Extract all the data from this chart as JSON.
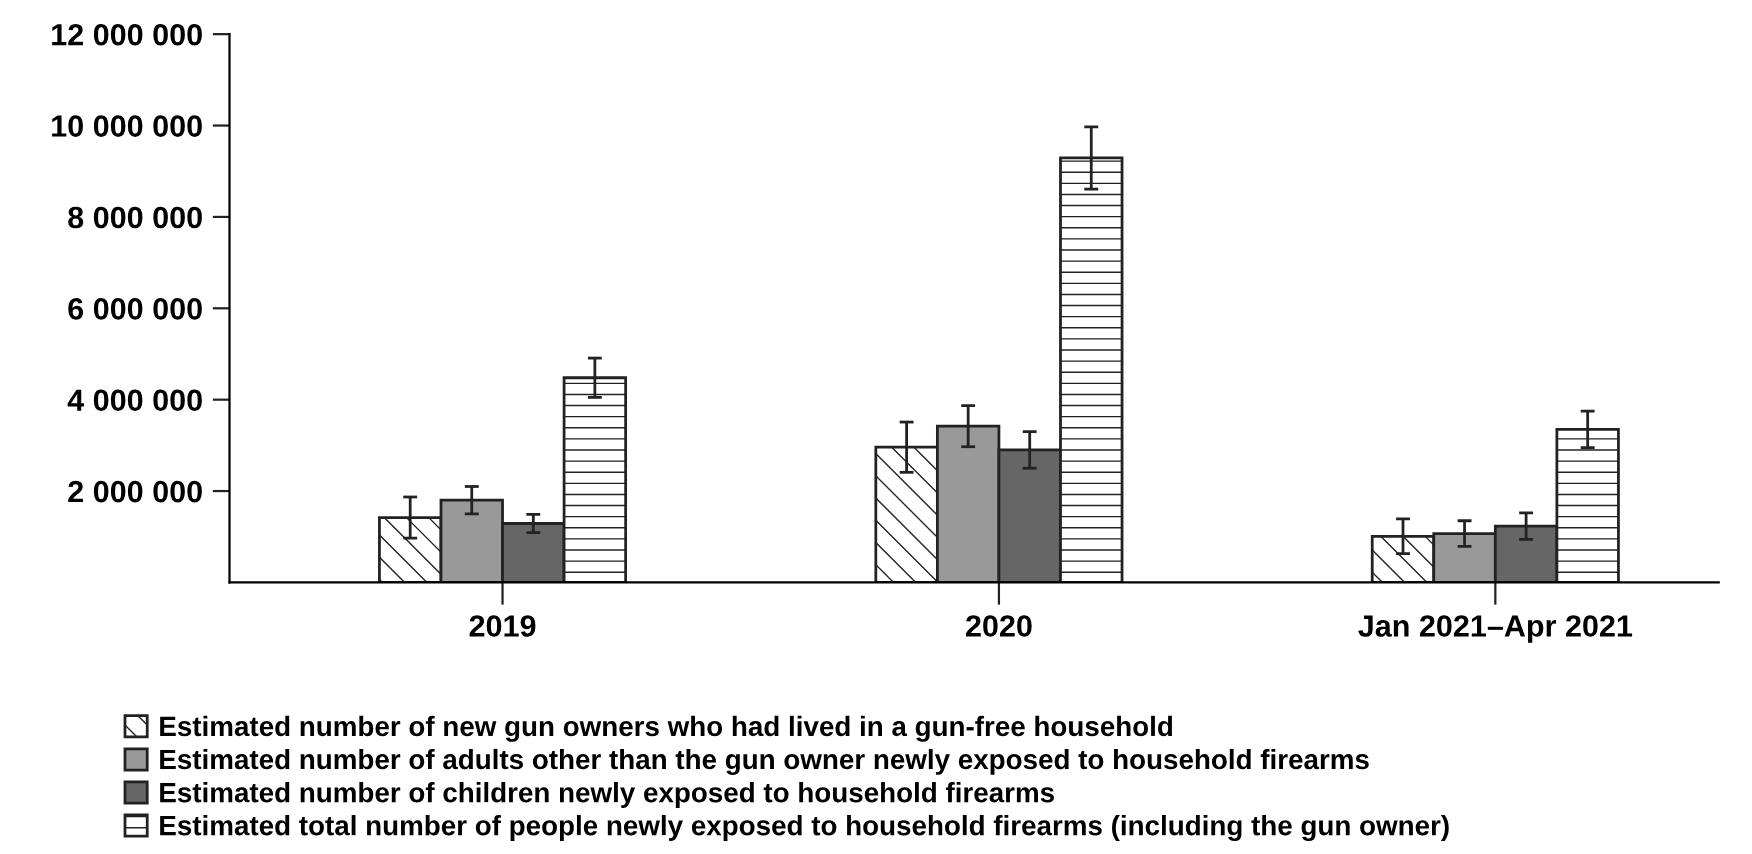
{
  "chart_data": {
    "type": "bar",
    "categories": [
      "2019",
      "2020",
      "Jan 2021–Apr 2021"
    ],
    "series": [
      {
        "name": "Estimated number of new gun owners who had lived in a gun-free household",
        "color": "#222222",
        "values": [
          1420000,
          2960000,
          1010000
        ],
        "errors": [
          450000,
          550000,
          380000
        ]
      },
      {
        "name": "Estimated number of adults other than the gun owner newly exposed to household firearms",
        "color": "#999999",
        "values": [
          1800000,
          3420000,
          1070000
        ],
        "errors": [
          300000,
          450000,
          280000
        ]
      },
      {
        "name": "Estimated number of children newly exposed to household firearms",
        "color": "#666666",
        "values": [
          1290000,
          2900000,
          1230000
        ],
        "errors": [
          200000,
          400000,
          290000
        ]
      },
      {
        "name": "Estimated total number of people newly exposed to household firearms (including the gun owner)",
        "color": "#222222",
        "values": [
          4480000,
          9290000,
          3350000
        ],
        "errors": [
          430000,
          680000,
          400000
        ]
      }
    ],
    "ylim": [
      0,
      12000000
    ],
    "yticks": [
      {
        "value": 2000000,
        "label": "2 000 000"
      },
      {
        "value": 4000000,
        "label": "4 000 000"
      },
      {
        "value": 6000000,
        "label": "6 000 000"
      },
      {
        "value": 8000000,
        "label": "8 000 000"
      },
      {
        "value": 10000000,
        "label": "10 000 000"
      },
      {
        "value": 12000000,
        "label": "12 000 000"
      }
    ],
    "grid": false,
    "legend": "bottom"
  }
}
